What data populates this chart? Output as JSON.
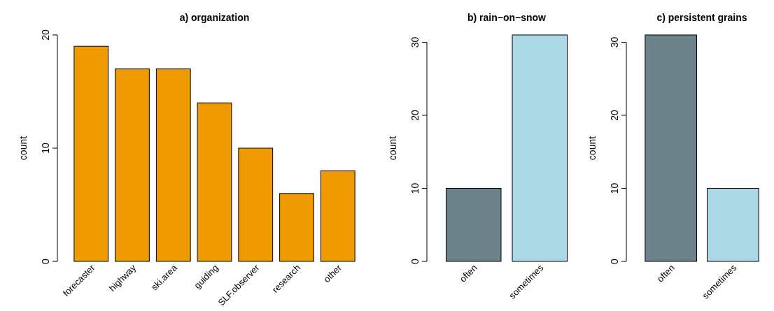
{
  "chart_data": [
    {
      "type": "bar",
      "title": "a) organization",
      "ylabel": "count",
      "categories": [
        "forecaster",
        "highway",
        "ski.area",
        "guiding",
        "SLF.observer",
        "research",
        "other"
      ],
      "values": [
        19,
        17,
        17,
        14,
        10,
        6,
        8
      ],
      "color": "#ee9a00",
      "ylim": [
        0,
        20
      ],
      "yticks": [
        0,
        10,
        20
      ]
    },
    {
      "type": "bar",
      "title": "b) rain−on−snow",
      "ylabel": "count",
      "categories": [
        "often",
        "sometimes"
      ],
      "values": [
        10,
        31
      ],
      "colors": [
        "#6c838b",
        "#add8e6"
      ],
      "ylim": [
        0,
        31
      ],
      "yticks": [
        0,
        10,
        20,
        30
      ]
    },
    {
      "type": "bar",
      "title": "c) persistent grains",
      "ylabel": "count",
      "categories": [
        "often",
        "sometimes"
      ],
      "values": [
        31,
        10
      ],
      "colors": [
        "#6c838b",
        "#add8e6"
      ],
      "ylim": [
        0,
        31
      ],
      "yticks": [
        0,
        10,
        20,
        30
      ]
    }
  ]
}
